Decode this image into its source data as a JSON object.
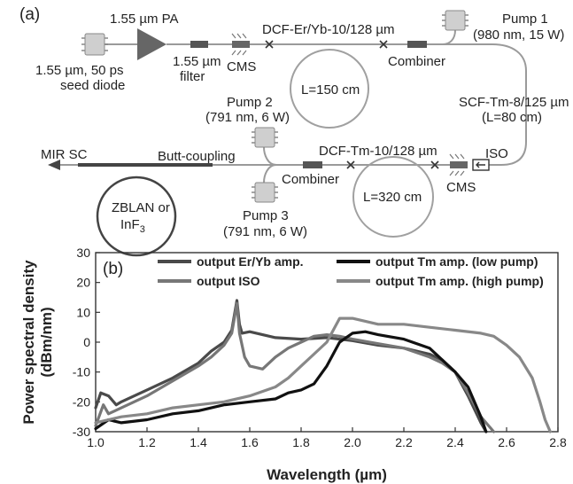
{
  "panel_a": {
    "panel_label": "(a)",
    "seed_diode": [
      "1.55 µm, 50 ps",
      "seed diode"
    ],
    "pa": "1.55 µm PA",
    "filter": [
      "1.55 µm",
      "filter"
    ],
    "cms_top": "CMS",
    "dcf_er": "DCF-Er/Yb-10/128 µm",
    "coil1": "L=150 cm",
    "combiner_top": "Combiner",
    "pump1": [
      "Pump 1",
      "(980 nm, 15 W)"
    ],
    "scf": [
      "SCF-Tm-8/125 µm",
      "(L=80 cm)"
    ],
    "pump2": [
      "Pump 2",
      "(791 nm, 6 W)"
    ],
    "mir": "MIR SC",
    "butt": "Butt-coupling",
    "dcf_tm": "DCF-Tm-10/128 µm",
    "iso": "ISO",
    "zblan": [
      "ZBLAN or",
      "InF"
    ],
    "zblan_sub": "3",
    "combiner_bottom": "Combiner",
    "pump3": [
      "Pump 3",
      "(791 nm, 6 W)"
    ],
    "coil2": "L=320 cm",
    "cms_bottom": "CMS"
  },
  "panel_b_label": "(b)",
  "chart_data": {
    "type": "line",
    "xlabel": "Wavelength (µm)",
    "ylabel": [
      "Power spectral density",
      "(dBm/nm)"
    ],
    "xlim": [
      1.0,
      2.8
    ],
    "ylim": [
      -30,
      30
    ],
    "xticks": [
      "1.0",
      "1.2",
      "1.4",
      "1.6",
      "1.8",
      "2.0",
      "2.2",
      "2.4",
      "2.6",
      "2.8"
    ],
    "yticks": [
      "30",
      "20",
      "10",
      "0",
      "-10",
      "-20",
      "-30"
    ],
    "grid": false,
    "legend_placement": "top",
    "series": [
      {
        "name": "output Er/Yb amp.",
        "color": "#4a4a4a",
        "x": [
          1.0,
          1.02,
          1.05,
          1.08,
          1.1,
          1.2,
          1.3,
          1.4,
          1.45,
          1.5,
          1.53,
          1.54,
          1.55,
          1.56,
          1.57,
          1.6,
          1.65,
          1.7,
          1.8,
          1.9,
          2.0,
          2.1,
          2.2,
          2.3,
          2.35,
          2.4,
          2.45,
          2.5,
          2.52
        ],
        "y": [
          -22,
          -17,
          -18,
          -21,
          -20,
          -16,
          -12,
          -7,
          -3,
          0,
          4,
          9,
          14,
          6,
          3,
          3.5,
          2.5,
          1.5,
          1,
          1.5,
          0.5,
          -1,
          -2,
          -4,
          -6,
          -10,
          -18,
          -27,
          -30
        ]
      },
      {
        "name": "output ISO",
        "color": "#777777",
        "x": [
          1.0,
          1.03,
          1.05,
          1.1,
          1.2,
          1.3,
          1.4,
          1.45,
          1.5,
          1.53,
          1.54,
          1.55,
          1.56,
          1.58,
          1.6,
          1.65,
          1.7,
          1.75,
          1.8,
          1.85,
          1.9,
          1.95,
          2.0,
          2.1,
          2.2,
          2.3,
          2.35,
          2.4,
          2.45,
          2.5,
          2.55
        ],
        "y": [
          -28,
          -21,
          -24,
          -22,
          -18,
          -13,
          -8,
          -5,
          -1,
          3,
          8,
          13,
          3,
          -5,
          -8,
          -9,
          -5,
          -2,
          0,
          2,
          2.5,
          2,
          1,
          -0.5,
          -2,
          -5,
          -7,
          -10,
          -17,
          -25,
          -30
        ]
      },
      {
        "name": "output Tm amp. (low pump)",
        "color": "#111111",
        "x": [
          1.0,
          1.05,
          1.1,
          1.2,
          1.3,
          1.4,
          1.5,
          1.6,
          1.7,
          1.75,
          1.8,
          1.85,
          1.9,
          1.95,
          2.0,
          2.05,
          2.1,
          2.2,
          2.3,
          2.35,
          2.4,
          2.45,
          2.5,
          2.52
        ],
        "y": [
          -29,
          -26,
          -27,
          -26,
          -24,
          -23,
          -21,
          -20,
          -19,
          -17,
          -16,
          -14,
          -8,
          0,
          3,
          3.5,
          2.5,
          1,
          -2,
          -6,
          -10,
          -15,
          -25,
          -30
        ]
      },
      {
        "name": "output Tm amp. (high pump)",
        "color": "#888888",
        "x": [
          1.0,
          1.05,
          1.1,
          1.2,
          1.3,
          1.4,
          1.5,
          1.6,
          1.7,
          1.75,
          1.8,
          1.85,
          1.9,
          1.95,
          2.0,
          2.1,
          2.2,
          2.3,
          2.4,
          2.5,
          2.55,
          2.6,
          2.65,
          2.7,
          2.73,
          2.75,
          2.77
        ],
        "y": [
          -27,
          -26,
          -25,
          -24,
          -22,
          -21,
          -20,
          -18,
          -15,
          -12,
          -8,
          -4,
          0,
          8,
          8,
          6,
          6,
          5,
          4,
          3,
          2,
          -1,
          -5,
          -12,
          -20,
          -26,
          -30
        ]
      }
    ]
  }
}
